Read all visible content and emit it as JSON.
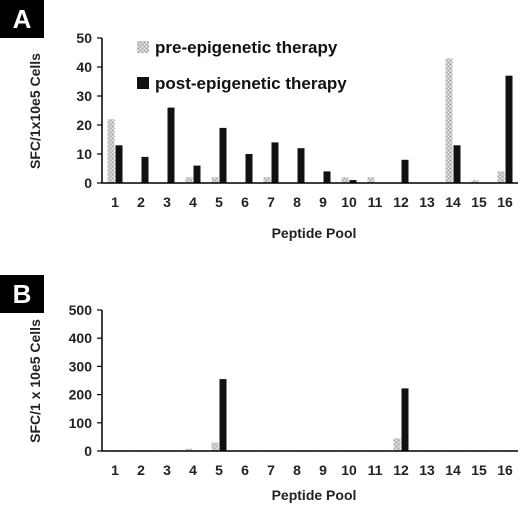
{
  "panels": [
    {
      "label": "A"
    },
    {
      "label": "B"
    }
  ],
  "legend": [
    {
      "name": "pre-epigenetic therapy",
      "color": "#c8c8c8",
      "pattern": "stipple"
    },
    {
      "name": "post-epigenetic therapy",
      "color": "#111111",
      "pattern": "solid"
    }
  ],
  "chart_data": [
    {
      "type": "bar",
      "panel": "A",
      "categories": [
        "1",
        "2",
        "3",
        "4",
        "5",
        "6",
        "7",
        "8",
        "9",
        "10",
        "11",
        "12",
        "13",
        "14",
        "15",
        "16"
      ],
      "series": [
        {
          "name": "pre-epigenetic therapy",
          "values": [
            22,
            0,
            0,
            2,
            2,
            0,
            2,
            0,
            0,
            2,
            2,
            0,
            0,
            43,
            1,
            4
          ]
        },
        {
          "name": "post-epigenetic therapy",
          "values": [
            13,
            9,
            26,
            6,
            19,
            10,
            14,
            12,
            4,
            1,
            0,
            8,
            0,
            13,
            0,
            37
          ]
        }
      ],
      "xlabel": "Peptide Pool",
      "ylabel": "SFC/1x10e5 Cells",
      "ylim": [
        0,
        50
      ],
      "yticks": [
        0,
        10,
        20,
        30,
        40,
        50
      ],
      "legend_position": "top-left",
      "grid": false
    },
    {
      "type": "bar",
      "panel": "B",
      "categories": [
        "1",
        "2",
        "3",
        "4",
        "5",
        "6",
        "7",
        "8",
        "9",
        "10",
        "11",
        "12",
        "13",
        "14",
        "15",
        "16"
      ],
      "series": [
        {
          "name": "pre-epigenetic therapy",
          "values": [
            0,
            0,
            0,
            8,
            30,
            0,
            0,
            0,
            0,
            0,
            0,
            45,
            0,
            0,
            0,
            0
          ]
        },
        {
          "name": "post-epigenetic therapy",
          "values": [
            2,
            2,
            2,
            2,
            255,
            2,
            2,
            2,
            2,
            2,
            2,
            222,
            2,
            2,
            2,
            2
          ]
        }
      ],
      "xlabel": "Peptide Pool",
      "ylabel": "SFC/1 x 10e5 Cells",
      "ylim": [
        0,
        500
      ],
      "yticks": [
        0,
        100,
        200,
        300,
        400,
        500
      ],
      "grid": false
    }
  ]
}
